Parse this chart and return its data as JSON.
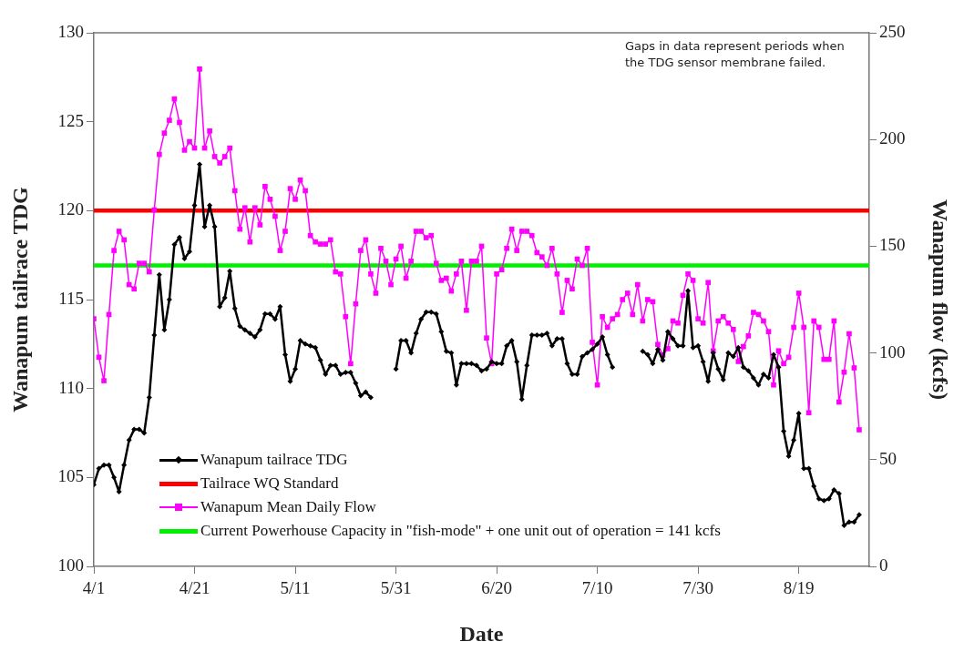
{
  "chart_data": {
    "type": "line",
    "xlabel": "Date",
    "ylabel": "Wanapum tailrace TDG",
    "y2label": "Wanapum flow (kcfs)",
    "annotations": [
      "Gaps in data represent periods when the TDG sensor membrane failed."
    ],
    "x": [
      "--04-01",
      "--04-02",
      "--04-03",
      "--04-04",
      "--04-05",
      "--04-06",
      "--04-07",
      "--04-08",
      "--04-09",
      "--04-10",
      "--04-11",
      "--04-12",
      "--04-13",
      "--04-14",
      "--04-15",
      "--04-16",
      "--04-17",
      "--04-18",
      "--04-19",
      "--04-20",
      "--04-21",
      "--04-22",
      "--04-23",
      "--04-24",
      "--04-25",
      "--04-26",
      "--04-27",
      "--04-28",
      "--04-29",
      "--04-30",
      "--05-01",
      "--05-02",
      "--05-03",
      "--05-04",
      "--05-05",
      "--05-06",
      "--05-07",
      "--05-08",
      "--05-09",
      "--05-10",
      "--05-11",
      "--05-12",
      "--05-13",
      "--05-14",
      "--05-15",
      "--05-16",
      "--05-17",
      "--05-18",
      "--05-19",
      "--05-20",
      "--05-21",
      "--05-22",
      "--05-23",
      "--05-24",
      "--05-25",
      "--05-26",
      "--05-27",
      "--05-28",
      "--05-29",
      "--05-30",
      "--05-31",
      "--06-01",
      "--06-02",
      "--06-03",
      "--06-04",
      "--06-05",
      "--06-06",
      "--06-07",
      "--06-08",
      "--06-09",
      "--06-10",
      "--06-11",
      "--06-12",
      "--06-13",
      "--06-14",
      "--06-15",
      "--06-16",
      "--06-17",
      "--06-18",
      "--06-19",
      "--06-20",
      "--06-21",
      "--06-22",
      "--06-23",
      "--06-24",
      "--06-25",
      "--06-26",
      "--06-27",
      "--06-28",
      "--06-29",
      "--06-30",
      "--07-01",
      "--07-02",
      "--07-03",
      "--07-04",
      "--07-05",
      "--07-06",
      "--07-07",
      "--07-08",
      "--07-09",
      "--07-10",
      "--07-11",
      "--07-12",
      "--07-13",
      "--07-14",
      "--07-15",
      "--07-16",
      "--07-17",
      "--07-18",
      "--07-19",
      "--07-20",
      "--07-21",
      "--07-22",
      "--07-23",
      "--07-24",
      "--07-25",
      "--07-26",
      "--07-27",
      "--07-28",
      "--07-29",
      "--07-30",
      "--07-31",
      "--08-01",
      "--08-02",
      "--08-03",
      "--08-04",
      "--08-05",
      "--08-06",
      "--08-07",
      "--08-08",
      "--08-09",
      "--08-10",
      "--08-11",
      "--08-12",
      "--08-13",
      "--08-14",
      "--08-15",
      "--08-16",
      "--08-17",
      "--08-18",
      "--08-19",
      "--08-20",
      "--08-21",
      "--08-22",
      "--08-23",
      "--08-24",
      "--08-25",
      "--08-26",
      "--08-27",
      "--08-28",
      "--08-29",
      "--08-30",
      "--08-31"
    ],
    "series": [
      {
        "name": "Wanapum tailrace TDG",
        "color": "#000000",
        "marker": "diamond",
        "values": [
          104.6,
          105.5,
          105.7,
          105.7,
          105.0,
          104.2,
          105.7,
          107.1,
          107.7,
          107.7,
          107.5,
          109.5,
          113.0,
          116.4,
          113.3,
          115.0,
          118.1,
          118.5,
          117.3,
          117.7,
          120.3,
          122.6,
          119.1,
          120.3,
          119.1,
          114.6,
          115.1,
          116.6,
          114.5,
          113.5,
          113.3,
          113.1,
          112.9,
          113.3,
          114.2,
          114.2,
          113.9,
          114.6,
          111.9,
          110.4,
          111.1,
          112.7,
          112.5,
          112.4,
          112.3,
          111.6,
          110.8,
          111.3,
          111.3,
          110.8,
          110.9,
          110.9,
          110.3,
          109.6,
          109.8,
          109.5,
          null,
          null,
          null,
          null,
          111.1,
          112.7,
          112.7,
          112.0,
          113.1,
          113.9,
          114.3,
          114.3,
          114.2,
          113.2,
          112.1,
          112.0,
          110.2,
          111.4,
          111.4,
          111.4,
          111.3,
          111.0,
          111.1,
          111.5,
          111.4,
          111.4,
          112.4,
          112.7,
          111.5,
          109.4,
          111.3,
          113.0,
          113.0,
          113.0,
          113.1,
          112.4,
          112.8,
          112.8,
          111.4,
          110.8,
          110.8,
          111.8,
          112.0,
          112.2,
          112.5,
          112.9,
          111.9,
          111.2,
          null,
          null,
          null,
          null,
          null,
          112.1,
          111.9,
          111.4,
          112.2,
          111.6,
          113.2,
          112.8,
          112.4,
          112.4,
          115.5,
          112.3,
          112.4,
          111.5,
          110.4,
          112.0,
          111.1,
          110.5,
          112.0,
          111.8,
          112.3,
          111.2,
          111.0,
          110.6,
          110.2,
          110.8,
          110.6,
          111.9,
          111.2,
          107.6,
          106.2,
          107.1,
          108.6,
          105.5,
          105.5,
          104.5,
          103.8,
          103.7,
          103.8,
          104.3,
          104.1,
          102.3,
          102.5,
          102.5,
          102.9
        ]
      },
      {
        "name": "Wanapum Mean Daily Flow",
        "color": "#ff00ff",
        "marker": "square",
        "axis": "y2",
        "values": [
          116,
          98,
          87,
          118,
          148,
          157,
          153,
          132,
          130,
          142,
          142,
          138,
          167,
          193,
          203,
          209,
          219,
          208,
          195,
          199,
          196,
          233,
          196,
          204,
          192,
          189,
          192,
          196,
          176,
          158,
          168,
          152,
          168,
          160,
          178,
          172,
          164,
          148,
          157,
          177,
          172,
          181,
          176,
          155,
          152,
          151,
          151,
          153,
          138,
          137,
          117,
          95,
          123,
          148,
          153,
          137,
          128,
          149,
          143,
          132,
          144,
          150,
          135,
          143,
          157,
          157,
          154,
          155,
          142,
          134,
          135,
          129,
          137,
          143,
          120,
          143,
          143,
          150,
          107,
          95,
          137,
          139,
          149,
          158,
          148,
          157,
          157,
          155,
          147,
          145,
          141,
          149,
          137,
          119,
          134,
          130,
          144,
          141,
          149,
          105,
          85,
          117,
          112,
          116,
          118,
          125,
          128,
          118,
          132,
          115,
          125,
          124,
          104,
          99,
          102,
          115,
          114,
          127,
          137,
          134,
          116,
          114,
          133,
          101,
          115,
          117,
          114,
          111,
          96,
          103,
          108,
          119,
          118,
          115,
          110,
          85,
          101,
          95,
          98,
          112,
          128,
          112,
          72,
          115,
          112,
          97,
          97,
          115,
          77,
          91,
          109,
          93,
          64
        ]
      }
    ],
    "ref_lines": [
      {
        "axis": "y",
        "value": 120,
        "label": "Tailrace WQ Standard",
        "color": "#ff0000"
      },
      {
        "axis": "y2",
        "value": 141,
        "label": "Current Powerhouse Capacity in \"fish-mode\" + one unit out of operation = 141 kcfs",
        "color": "#00ee00"
      }
    ],
    "xlim": [
      "--04-01",
      "--09-02"
    ],
    "xticks": [
      {
        "value": "--04-01",
        "label": "4/1"
      },
      {
        "value": "--04-21",
        "label": "4/21"
      },
      {
        "value": "--05-11",
        "label": "5/11"
      },
      {
        "value": "--05-31",
        "label": "5/31"
      },
      {
        "value": "--06-20",
        "label": "6/20"
      },
      {
        "value": "--07-10",
        "label": "7/10"
      },
      {
        "value": "--07-30",
        "label": "7/30"
      },
      {
        "value": "--08-19",
        "label": "8/19"
      }
    ],
    "ylim": [
      100,
      130
    ],
    "yticks": [
      100,
      105,
      110,
      115,
      120,
      125,
      130
    ],
    "y2lim": [
      0,
      250
    ],
    "y2ticks": [
      0,
      50,
      100,
      150,
      200,
      250
    ],
    "grid": false,
    "legend": "bottom left",
    "line_style": "solid"
  }
}
